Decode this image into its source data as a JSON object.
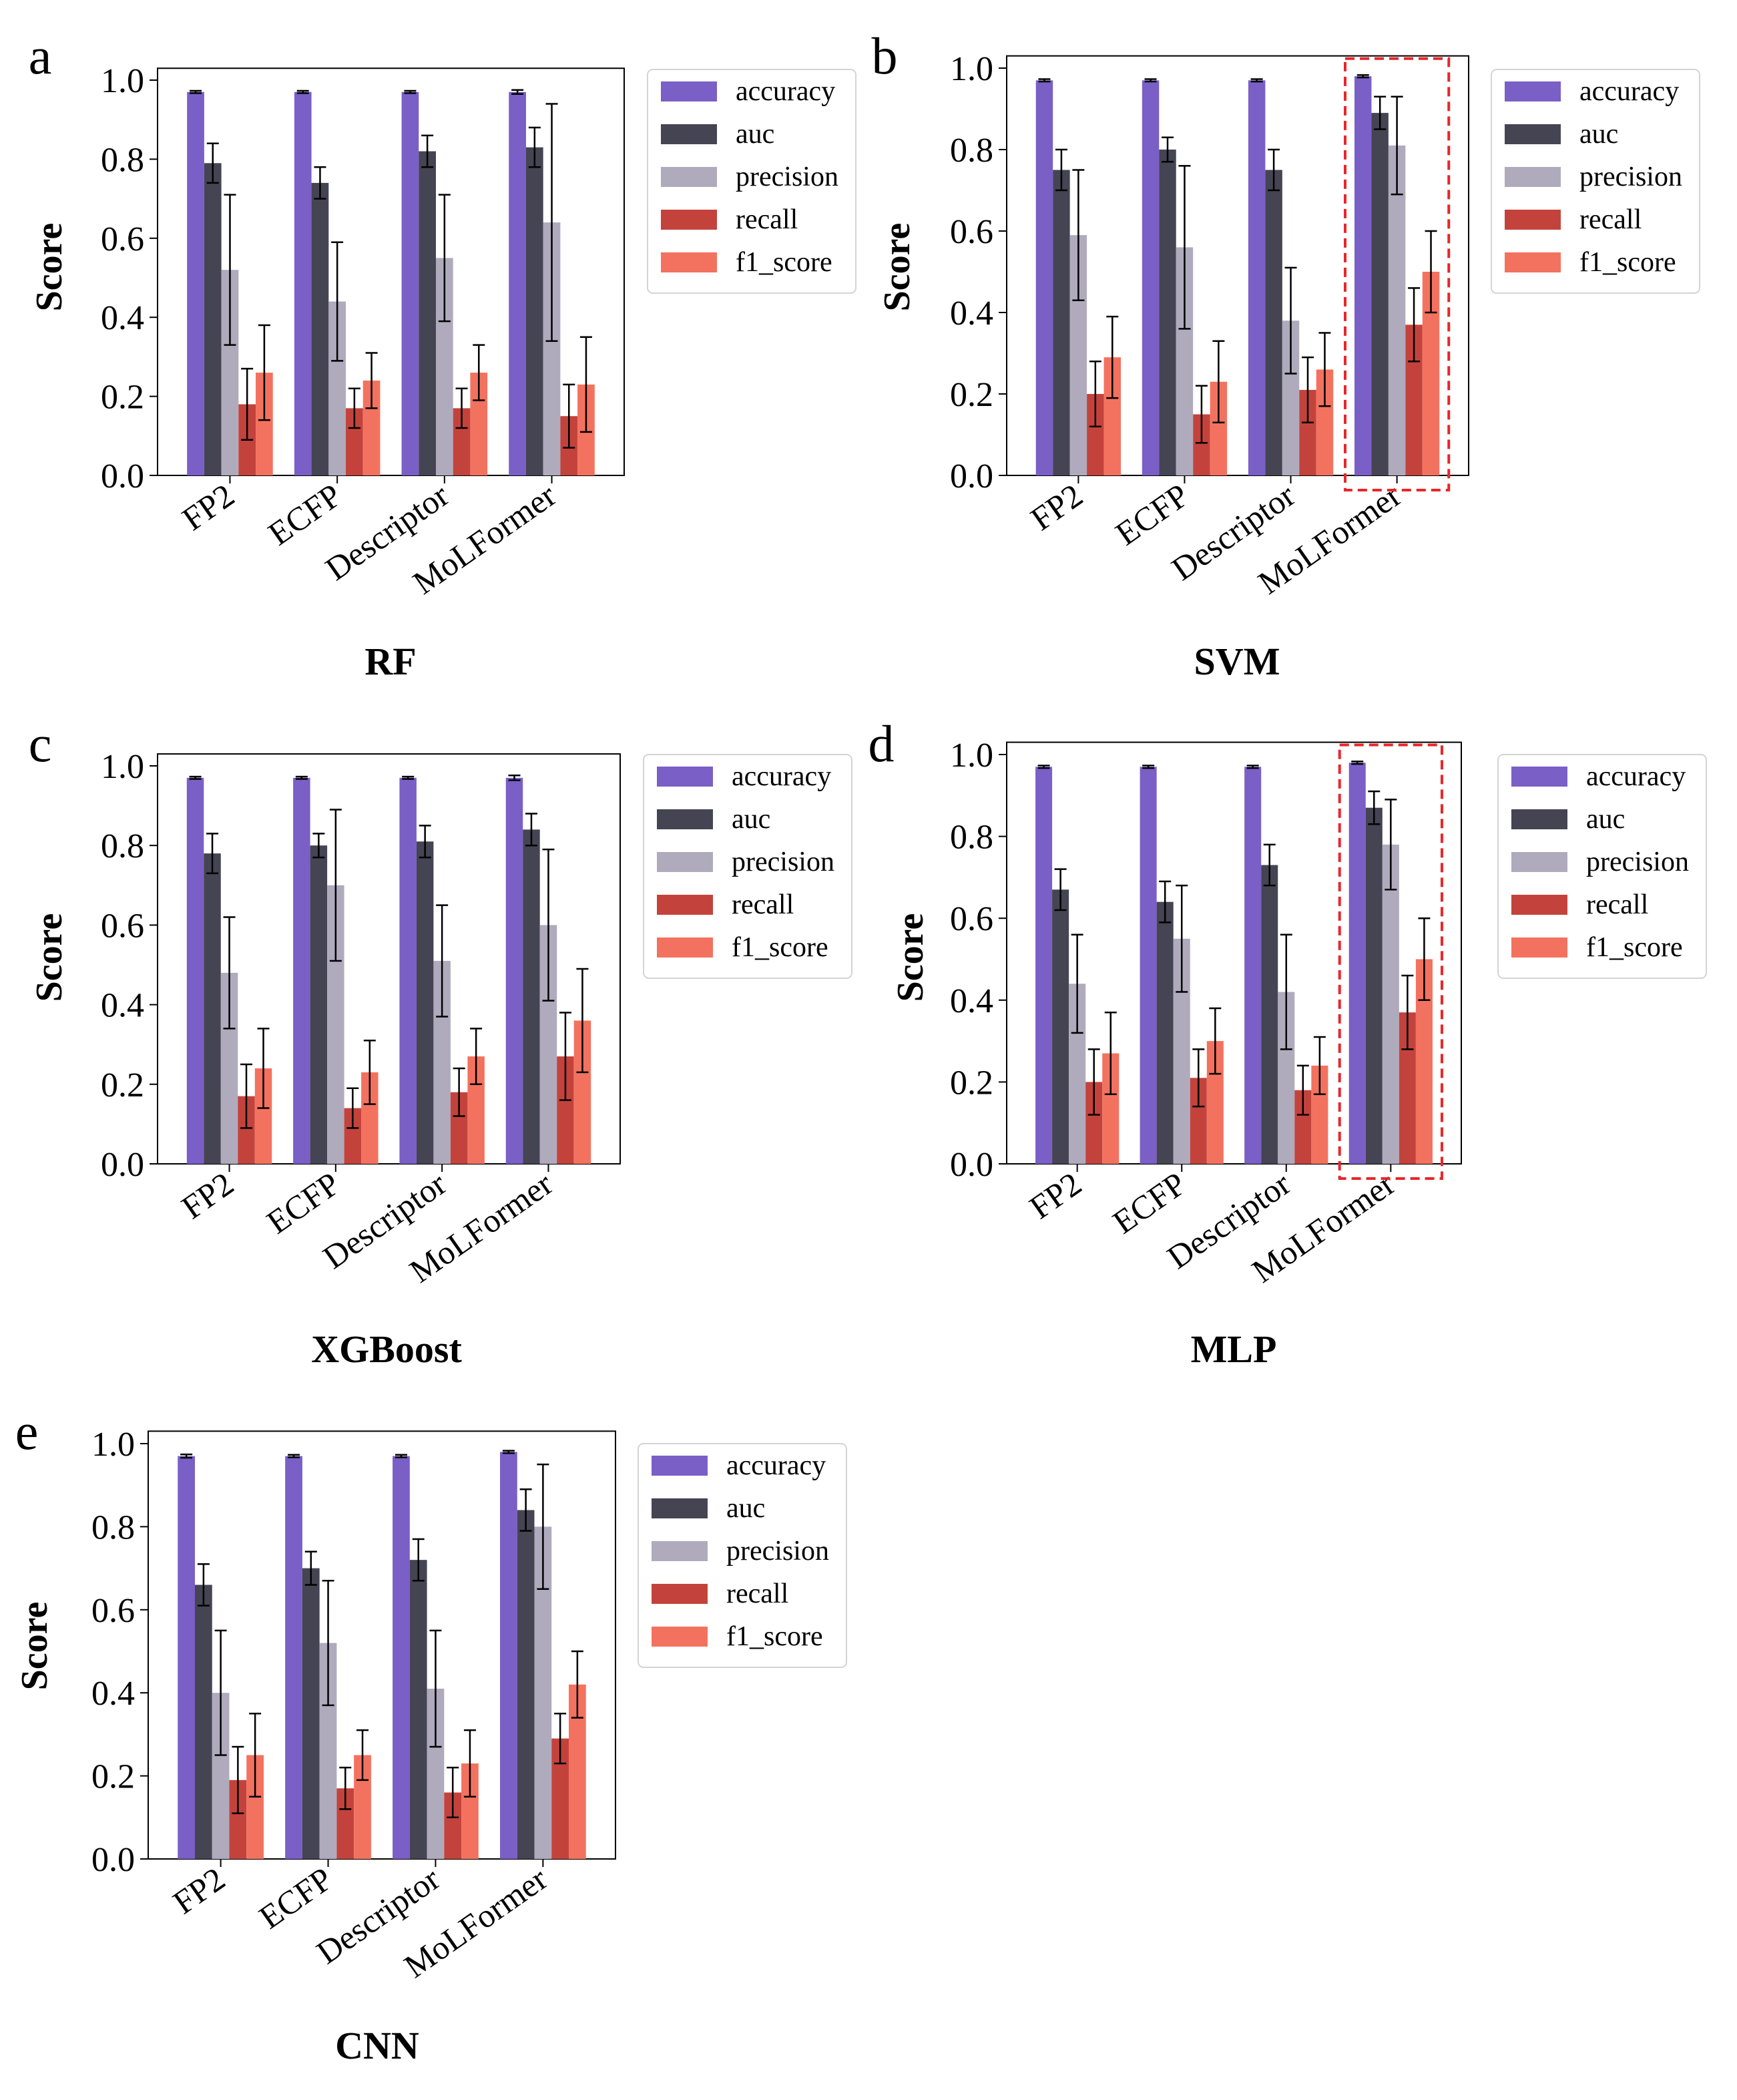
{
  "figure": {
    "metrics": [
      "accuracy",
      "auc",
      "precision",
      "recall",
      "f1_score"
    ],
    "colors": {
      "accuracy": "#7a5fc6",
      "auc": "#454452",
      "precision": "#afabbd",
      "recall": "#c3433c",
      "f1_score": "#f3725f",
      "highlight": "#e8262a"
    },
    "ylabel": "Score",
    "yticks": [
      "0.0",
      "0.2",
      "0.4",
      "0.6",
      "0.8",
      "1.0"
    ]
  },
  "chart_data": [
    {
      "panel": "a",
      "type": "bar",
      "title": "RF",
      "xlabel": "",
      "ylabel": "Score",
      "ylim": [
        0,
        1.03
      ],
      "categories": [
        "FP2",
        "ECFP",
        "Descriptor",
        "MoLFormer"
      ],
      "highlight_category": null,
      "series": [
        {
          "name": "accuracy",
          "values": [
            0.97,
            0.97,
            0.97,
            0.97
          ],
          "errors": [
            0.003,
            0.003,
            0.003,
            0.005
          ]
        },
        {
          "name": "auc",
          "values": [
            0.79,
            0.74,
            0.82,
            0.83
          ],
          "errors": [
            0.05,
            0.04,
            0.04,
            0.05
          ]
        },
        {
          "name": "precision",
          "values": [
            0.52,
            0.44,
            0.55,
            0.64
          ],
          "errors": [
            0.19,
            0.15,
            0.16,
            0.3
          ]
        },
        {
          "name": "recall",
          "values": [
            0.18,
            0.17,
            0.17,
            0.15
          ],
          "errors": [
            0.09,
            0.05,
            0.05,
            0.08
          ]
        },
        {
          "name": "f1_score",
          "values": [
            0.26,
            0.24,
            0.26,
            0.23
          ],
          "errors": [
            0.12,
            0.07,
            0.07,
            0.12
          ]
        }
      ]
    },
    {
      "panel": "b",
      "type": "bar",
      "title": "SVM",
      "xlabel": "",
      "ylabel": "Score",
      "ylim": [
        0,
        1.03
      ],
      "categories": [
        "FP2",
        "ECFP",
        "Descriptor",
        "MoLFormer"
      ],
      "highlight_category": "MoLFormer",
      "series": [
        {
          "name": "accuracy",
          "values": [
            0.97,
            0.97,
            0.97,
            0.98
          ],
          "errors": [
            0.003,
            0.003,
            0.003,
            0.003
          ]
        },
        {
          "name": "auc",
          "values": [
            0.75,
            0.8,
            0.75,
            0.89
          ],
          "errors": [
            0.05,
            0.03,
            0.05,
            0.04
          ]
        },
        {
          "name": "precision",
          "values": [
            0.59,
            0.56,
            0.38,
            0.81
          ],
          "errors": [
            0.16,
            0.2,
            0.13,
            0.12
          ]
        },
        {
          "name": "recall",
          "values": [
            0.2,
            0.15,
            0.21,
            0.37
          ],
          "errors": [
            0.08,
            0.07,
            0.08,
            0.09
          ]
        },
        {
          "name": "f1_score",
          "values": [
            0.29,
            0.23,
            0.26,
            0.5
          ],
          "errors": [
            0.1,
            0.1,
            0.09,
            0.1
          ]
        }
      ]
    },
    {
      "panel": "c",
      "type": "bar",
      "title": "XGBoost",
      "xlabel": "",
      "ylabel": "Score",
      "ylim": [
        0,
        1.03
      ],
      "categories": [
        "FP2",
        "ECFP",
        "Descriptor",
        "MoLFormer"
      ],
      "highlight_category": null,
      "series": [
        {
          "name": "accuracy",
          "values": [
            0.97,
            0.97,
            0.97,
            0.97
          ],
          "errors": [
            0.003,
            0.003,
            0.003,
            0.006
          ]
        },
        {
          "name": "auc",
          "values": [
            0.78,
            0.8,
            0.81,
            0.84
          ],
          "errors": [
            0.05,
            0.03,
            0.04,
            0.04
          ]
        },
        {
          "name": "precision",
          "values": [
            0.48,
            0.7,
            0.51,
            0.6
          ],
          "errors": [
            0.14,
            0.19,
            0.14,
            0.19
          ]
        },
        {
          "name": "recall",
          "values": [
            0.17,
            0.14,
            0.18,
            0.27
          ],
          "errors": [
            0.08,
            0.05,
            0.06,
            0.11
          ]
        },
        {
          "name": "f1_score",
          "values": [
            0.24,
            0.23,
            0.27,
            0.36
          ],
          "errors": [
            0.1,
            0.08,
            0.07,
            0.13
          ]
        }
      ]
    },
    {
      "panel": "d",
      "type": "bar",
      "title": "MLP",
      "xlabel": "",
      "ylabel": "Score",
      "ylim": [
        0,
        1.03
      ],
      "categories": [
        "FP2",
        "ECFP",
        "Descriptor",
        "MoLFormer"
      ],
      "highlight_category": "MoLFormer",
      "series": [
        {
          "name": "accuracy",
          "values": [
            0.97,
            0.97,
            0.97,
            0.98
          ],
          "errors": [
            0.003,
            0.003,
            0.003,
            0.003
          ]
        },
        {
          "name": "auc",
          "values": [
            0.67,
            0.64,
            0.73,
            0.87
          ],
          "errors": [
            0.05,
            0.05,
            0.05,
            0.04
          ]
        },
        {
          "name": "precision",
          "values": [
            0.44,
            0.55,
            0.42,
            0.78
          ],
          "errors": [
            0.12,
            0.13,
            0.14,
            0.11
          ]
        },
        {
          "name": "recall",
          "values": [
            0.2,
            0.21,
            0.18,
            0.37
          ],
          "errors": [
            0.08,
            0.07,
            0.06,
            0.09
          ]
        },
        {
          "name": "f1_score",
          "values": [
            0.27,
            0.3,
            0.24,
            0.5
          ],
          "errors": [
            0.1,
            0.08,
            0.07,
            0.1
          ]
        }
      ]
    },
    {
      "panel": "e",
      "type": "bar",
      "title": "CNN",
      "xlabel": "",
      "ylabel": "Score",
      "ylim": [
        0,
        1.03
      ],
      "categories": [
        "FP2",
        "ECFP",
        "Descriptor",
        "MoLFormer"
      ],
      "highlight_category": null,
      "series": [
        {
          "name": "accuracy",
          "values": [
            0.97,
            0.97,
            0.97,
            0.98
          ],
          "errors": [
            0.004,
            0.003,
            0.003,
            0.003
          ]
        },
        {
          "name": "auc",
          "values": [
            0.66,
            0.7,
            0.72,
            0.84
          ],
          "errors": [
            0.05,
            0.04,
            0.05,
            0.05
          ]
        },
        {
          "name": "precision",
          "values": [
            0.4,
            0.52,
            0.41,
            0.8
          ],
          "errors": [
            0.15,
            0.15,
            0.14,
            0.15
          ]
        },
        {
          "name": "recall",
          "values": [
            0.19,
            0.17,
            0.16,
            0.29
          ],
          "errors": [
            0.08,
            0.05,
            0.06,
            0.06
          ]
        },
        {
          "name": "f1_score",
          "values": [
            0.25,
            0.25,
            0.23,
            0.42
          ],
          "errors": [
            0.1,
            0.06,
            0.08,
            0.08
          ]
        }
      ]
    }
  ]
}
